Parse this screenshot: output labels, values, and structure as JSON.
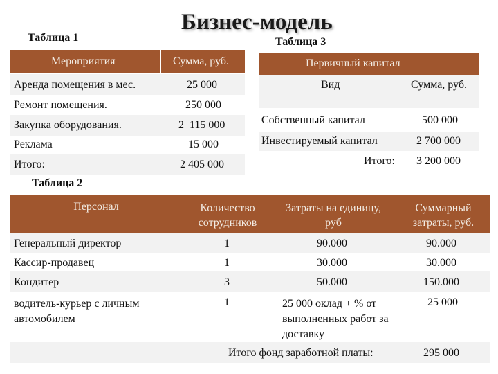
{
  "title": "Бизнес-модель",
  "table1": {
    "caption": "Таблица 1",
    "headers": [
      "Мероприятия",
      "Сумма, руб."
    ],
    "rows": [
      [
        "Аренда помещения в мес.",
        "25 000"
      ],
      [
        "Ремонт помещения.",
        "250 000"
      ],
      [
        "Закупка оборудования.",
        "2  115 000"
      ],
      [
        "Реклама",
        "15 000"
      ],
      [
        "Итого:",
        "2 405 000"
      ]
    ]
  },
  "table3": {
    "caption": "Таблица 3",
    "header": "Первичный капитал",
    "subheaders": [
      "Вид",
      "Сумма, руб."
    ],
    "rows": [
      [
        "Собственный капитал",
        "500 000"
      ],
      [
        "Инвестируемый капитал",
        "2 700 000"
      ]
    ],
    "total_label": "Итого:",
    "total_value": "3 200 000"
  },
  "table2": {
    "caption": "Таблица 2",
    "headers": [
      "Персонал",
      "Количество сотрудников",
      "Затраты на единицу, руб",
      "Суммарный затраты, руб."
    ],
    "rows": [
      [
        "Генеральный директор",
        "1",
        "90.000",
        "90.000"
      ],
      [
        "Кассир-продавец",
        "1",
        "30.000",
        "30.000"
      ],
      [
        "Кондитер",
        "3",
        "50.000",
        "150.000"
      ],
      [
        "водитель-курьер с личным автомобилем",
        "1",
        "25 000 оклад + % от выполненных работ за доставку",
        "25 000"
      ]
    ],
    "total_label": "Итого фонд заработной платы:",
    "total_value": "295 000"
  }
}
